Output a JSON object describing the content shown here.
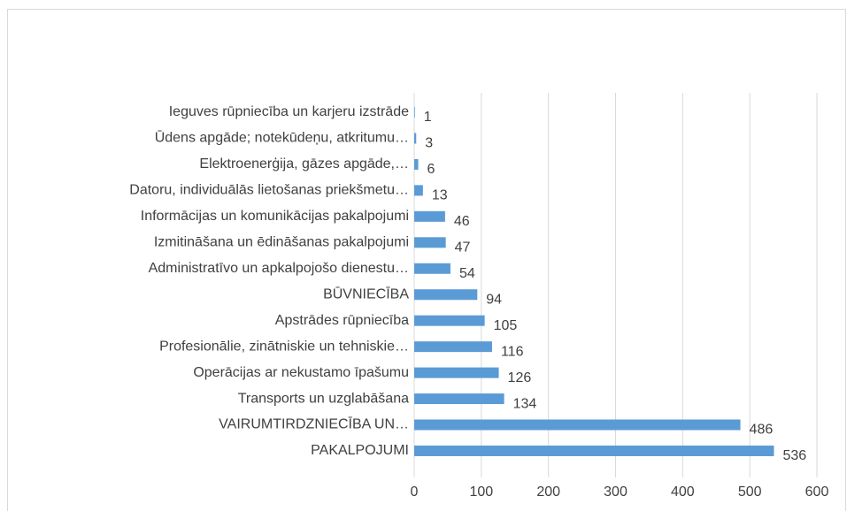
{
  "chart_data": {
    "type": "bar",
    "orientation": "horizontal",
    "categories": [
      "Ieguves rūpniecība un karjeru izstrāde",
      "Ūdens apgāde; notekūdeņu, atkritumu…",
      "Elektroenerģija, gāzes apgāde,…",
      "Datoru, individuālās lietošanas priekšmetu…",
      "Informācijas un komunikācijas pakalpojumi",
      "Izmitināšana un ēdināšanas pakalpojumi",
      "Administratīvo un apkalpojošo dienestu…",
      "BŪVNIECĪBA",
      "Apstrādes rūpniecība",
      "Profesionālie, zinātniskie un tehniskie…",
      "Operācijas ar nekustamo īpašumu",
      "Transports un uzglabāšana",
      "VAIRUMTIRDZNIECĪBA UN…",
      "PAKALPOJUMI"
    ],
    "values": [
      1,
      3,
      6,
      13,
      46,
      47,
      54,
      94,
      105,
      116,
      126,
      134,
      486,
      536
    ],
    "color": "#5b9bd5",
    "xlim": [
      0,
      600
    ],
    "xticks": [
      0,
      100,
      200,
      300,
      400,
      500,
      600
    ],
    "grid": true
  }
}
